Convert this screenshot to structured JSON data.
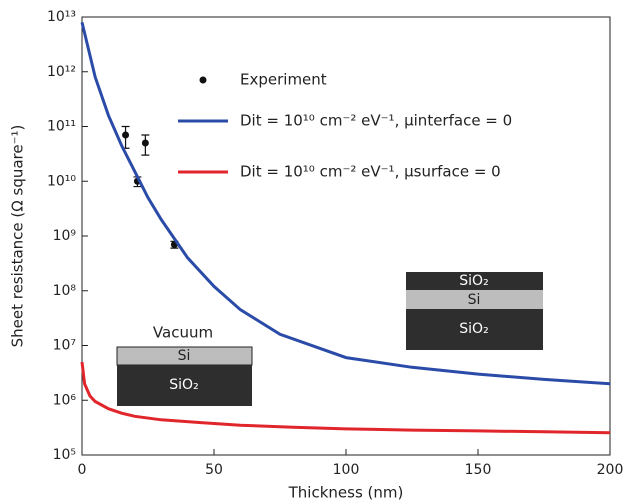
{
  "chart_data": {
    "type": "line",
    "xlabel": "Thickness (nm)",
    "ylabel": "Sheet resistance (Ω square⁻¹)",
    "xlim": [
      0,
      200
    ],
    "xticks": [
      0,
      50,
      100,
      150,
      200
    ],
    "ylim": [
      100000,
      10000000000000
    ],
    "yscale": "log",
    "yticks": [
      {
        "value": 100000,
        "label": "10⁵"
      },
      {
        "value": 1000000,
        "label": "10⁶"
      },
      {
        "value": 10000000,
        "label": "10⁷"
      },
      {
        "value": 100000000,
        "label": "10⁸"
      },
      {
        "value": 1000000000,
        "label": "10⁹"
      },
      {
        "value": 10000000000,
        "label": "10¹⁰"
      },
      {
        "value": 100000000000,
        "label": "10¹¹"
      },
      {
        "value": 1000000000000,
        "label": "10¹²"
      },
      {
        "value": 10000000000000,
        "label": "10¹³"
      }
    ],
    "series": [
      {
        "name": "Experiment",
        "kind": "scatter",
        "color": "#111111",
        "x": [
          16.5,
          21,
          24,
          35
        ],
        "values": [
          70000000000,
          10000000000,
          50000000000,
          700000000
        ],
        "errors": [
          30000000000,
          2000000000,
          20000000000,
          100000000
        ]
      },
      {
        "name": "Dit = 10¹⁰ cm⁻² eV⁻¹, μinterface = 0",
        "kind": "line",
        "color": "#2b4ba8",
        "x": [
          0,
          5,
          10,
          15,
          20,
          25,
          30,
          40,
          50,
          60,
          75,
          100,
          125,
          150,
          175,
          200
        ],
        "values": [
          8000000000000,
          800000000000,
          160000000000,
          45000000000,
          15000000000,
          5000000000,
          2000000000,
          400000000,
          120000000,
          45000000,
          16000000,
          6000000,
          4000000,
          3000000,
          2400000,
          2000000
        ]
      },
      {
        "name": "Dit = 10¹⁰ cm⁻² eV⁻¹, μsurface = 0",
        "kind": "line",
        "color": "#e0262b",
        "x": [
          0,
          1,
          3,
          5,
          10,
          15,
          20,
          30,
          45,
          60,
          80,
          100,
          125,
          150,
          175,
          200
        ],
        "values": [
          5000000,
          2000000,
          1200000,
          950000,
          700000,
          580000,
          510000,
          440000,
          390000,
          350000,
          320000,
          300000,
          285000,
          275000,
          265000,
          255000
        ]
      }
    ],
    "annotations": [
      "Vacuum",
      "Si",
      "SiO₂",
      "SiO₂",
      "Si",
      "SiO₂"
    ]
  }
}
